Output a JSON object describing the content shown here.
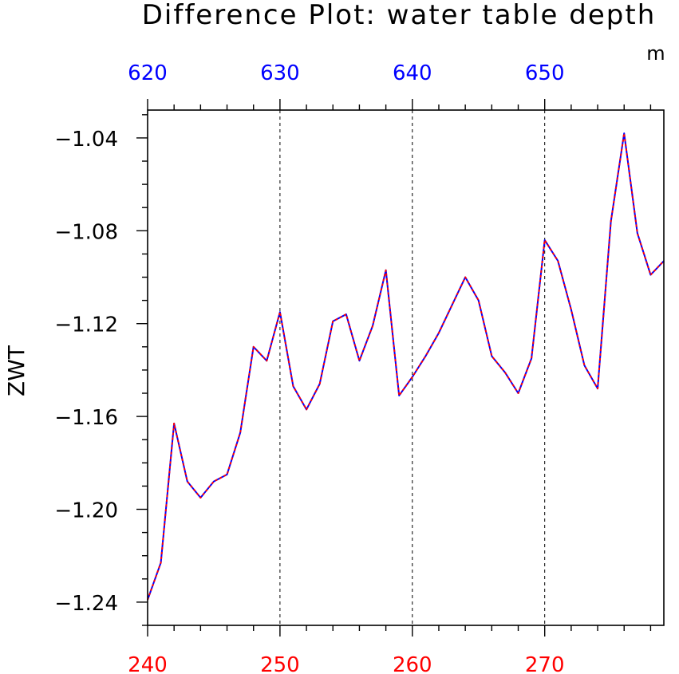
{
  "chart_data": {
    "type": "line",
    "title": "Difference Plot: water table depth",
    "units": "m",
    "ylabel": "ZWT",
    "bottom_axis": {
      "range": [
        240,
        279
      ],
      "ticks": [
        "240",
        "250",
        "260",
        "270"
      ],
      "tick_values": [
        240,
        250,
        260,
        270
      ],
      "color": "#ff0000"
    },
    "top_axis": {
      "range": [
        620,
        659
      ],
      "ticks": [
        "620",
        "630",
        "640",
        "650"
      ],
      "tick_values": [
        620,
        630,
        640,
        650
      ],
      "color": "#0000ff"
    },
    "y_axis": {
      "range": [
        -1.25,
        -1.028
      ],
      "ticks": [
        "−1.04",
        "−1.08",
        "−1.12",
        "−1.16",
        "−1.20",
        "−1.24"
      ],
      "tick_values": [
        -1.04,
        -1.08,
        -1.12,
        -1.16,
        -1.2,
        -1.24
      ]
    },
    "grid_x": [
      250,
      260,
      270
    ],
    "series": [
      {
        "color": "#0000ff",
        "style": "solid",
        "x": [
          240,
          241,
          242,
          243,
          244,
          245,
          246,
          247,
          248,
          249,
          250,
          251,
          252,
          253,
          254,
          255,
          256,
          257,
          258,
          259,
          260,
          261,
          262,
          263,
          264,
          265,
          266,
          267,
          268,
          269,
          270,
          271,
          272,
          273,
          274,
          275,
          276,
          277,
          278,
          279
        ],
        "values": [
          -1.239,
          -1.223,
          -1.163,
          -1.188,
          -1.195,
          -1.188,
          -1.185,
          -1.167,
          -1.13,
          -1.136,
          -1.115,
          -1.147,
          -1.157,
          -1.146,
          -1.119,
          -1.116,
          -1.136,
          -1.121,
          -1.097,
          -1.151,
          -1.143,
          -1.134,
          -1.124,
          -1.112,
          -1.1,
          -1.11,
          -1.134,
          -1.141,
          -1.15,
          -1.135,
          -1.084,
          -1.093,
          -1.114,
          -1.138,
          -1.148,
          -1.076,
          -1.038,
          -1.081,
          -1.099,
          -1.093
        ]
      },
      {
        "color": "#ff0000",
        "style": "dashed",
        "x": [
          240,
          241,
          242,
          243,
          244,
          245,
          246,
          247,
          248,
          249,
          250,
          251,
          252,
          253,
          254,
          255,
          256,
          257,
          258,
          259,
          260,
          261,
          262,
          263,
          264,
          265,
          266,
          267,
          268,
          269,
          270,
          271,
          272,
          273,
          274,
          275,
          276,
          277,
          278,
          279
        ],
        "values": [
          -1.239,
          -1.223,
          -1.163,
          -1.188,
          -1.195,
          -1.188,
          -1.185,
          -1.167,
          -1.13,
          -1.136,
          -1.115,
          -1.147,
          -1.157,
          -1.146,
          -1.119,
          -1.116,
          -1.136,
          -1.121,
          -1.097,
          -1.151,
          -1.143,
          -1.134,
          -1.124,
          -1.112,
          -1.1,
          -1.11,
          -1.134,
          -1.141,
          -1.15,
          -1.135,
          -1.084,
          -1.093,
          -1.114,
          -1.138,
          -1.148,
          -1.076,
          -1.038,
          -1.081,
          -1.099,
          -1.093
        ]
      }
    ]
  }
}
